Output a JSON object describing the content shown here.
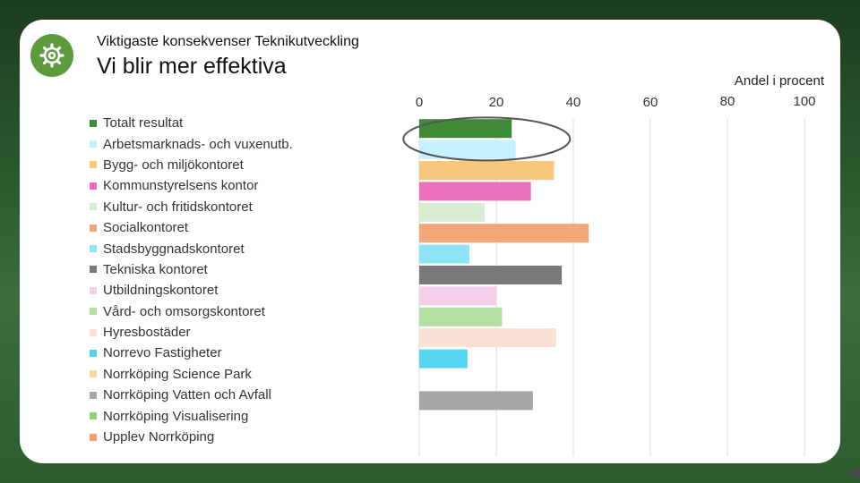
{
  "header": {
    "subtitle": "Viktigaste konsekvenser Teknikutveckling",
    "title": "Vi blir mer effektiva"
  },
  "logo": {
    "icon": "gear-icon",
    "color": "#5c9a3c"
  },
  "chart_data": {
    "type": "bar",
    "orientation": "horizontal",
    "xlabel": "Andel i procent",
    "xlim": [
      0,
      100
    ],
    "xticks": [
      0,
      20,
      40,
      60,
      80,
      100
    ],
    "grid": true,
    "legend_position": "left",
    "categories": [
      "Totalt resultat",
      "Arbetsmarknads- och vuxenutb.",
      "Bygg- och miljökontoret",
      "Kommunstyrelsens kontor",
      "Kultur- och fritidskontoret",
      "Socialkontoret",
      "Stadsbyggnadskontoret",
      "Tekniska kontoret",
      "Utbildningskontoret",
      "Vård- och omsorgskontoret",
      "Hyresbostäder",
      "Norrevo Fastigheter",
      "Norrköping Science Park",
      "Norrköping Vatten och Avfall",
      "Norrköping Visualisering",
      "Upplev Norrköping"
    ],
    "values": [
      24,
      25,
      35,
      29,
      17,
      44,
      13,
      37,
      20,
      21.5,
      35.5,
      12.5,
      null,
      29.5,
      null,
      null
    ],
    "colors": [
      "#3f8a36",
      "#c6f0fb",
      "#f8c77d",
      "#ea6fbd",
      "#d7ecd3",
      "#f2a77b",
      "#8fe3f6",
      "#7a7a7a",
      "#f5cfe9",
      "#b3dfa3",
      "#f9e1d4",
      "#55d4f0",
      "#f8d9a4",
      "#a6a6a6",
      "#8fd37a",
      "#f2a36f"
    ],
    "annotation": "ellipse around Totalt resultat and Arbetsmarknads- och vuxenutb."
  }
}
